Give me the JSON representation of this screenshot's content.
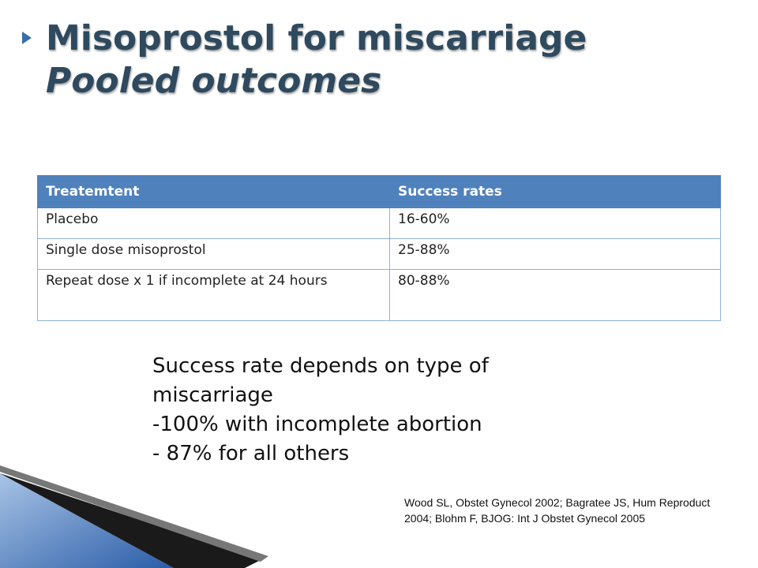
{
  "title": {
    "line1": "Misoprostol for miscarriage",
    "line2": "Pooled outcomes"
  },
  "table": {
    "header": [
      "Treatemtent",
      "Success rates"
    ],
    "rows": [
      [
        "Placebo",
        "16-60%"
      ],
      [
        "Single dose misoprostol",
        "25-88%"
      ],
      [
        "Repeat dose x 1 if incomplete at 24 hours",
        "80-88%"
      ]
    ]
  },
  "note": [
    "Success rate depends on type of miscarriage",
    "-100% with incomplete abortion",
    "- 87% for all others"
  ],
  "reference": "Wood SL, Obstet Gynecol 2002; Bagratee JS, Hum Reproduct 2004; Blohm F, BJOG: Int J Obstet Gynecol 2005"
}
